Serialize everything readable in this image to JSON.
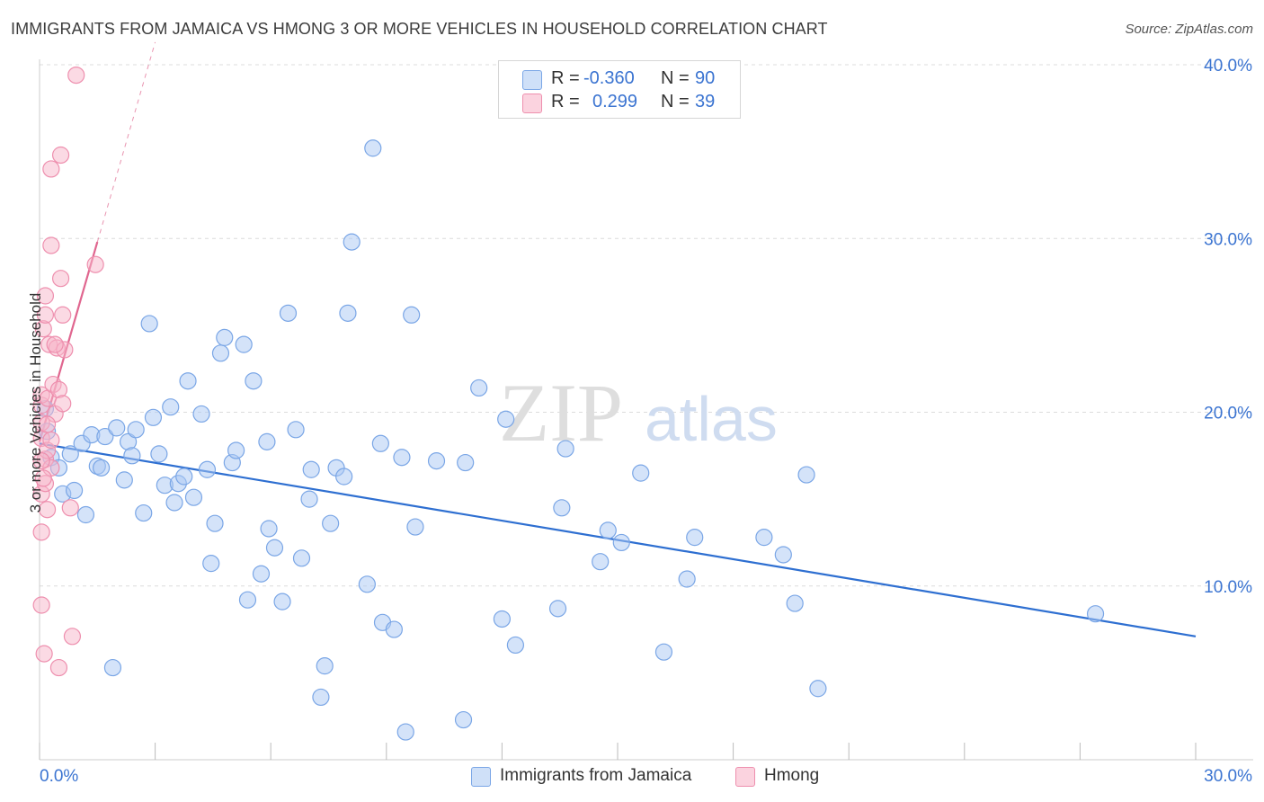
{
  "title": "IMMIGRANTS FROM JAMAICA VS HMONG 3 OR MORE VEHICLES IN HOUSEHOLD CORRELATION CHART",
  "source": "Source: ZipAtlas.com",
  "watermark": {
    "zip": "ZIP",
    "atlas": "atlas"
  },
  "legend": {
    "rows": [
      {
        "r_label": "R =",
        "r_value": "-0.360",
        "n_label": "N =",
        "n_value": "90",
        "color": "#a9c7f3"
      },
      {
        "r_label": "R =",
        "r_value": "0.299",
        "n_label": "N =",
        "n_value": "39",
        "color": "#f7b6ca"
      }
    ]
  },
  "chart_data": {
    "type": "scatter",
    "ylabel": "3 or more Vehicles in Household",
    "xlim": [
      0,
      30
    ],
    "ylim": [
      0,
      40
    ],
    "x_tick_labels": [
      "0.0%",
      "30.0%"
    ],
    "y_tick_labels": [
      "10.0%",
      "20.0%",
      "30.0%",
      "40.0%"
    ],
    "y_ticks": [
      10,
      20,
      30,
      40
    ],
    "series": [
      {
        "name": "Immigrants from Jamaica",
        "color": "#a9c7f3",
        "stroke": "#7aa6e6",
        "line_color": "#2e6fd1",
        "trend": {
          "x": [
            0,
            30
          ],
          "y": [
            18.2,
            7.1
          ]
        },
        "points": [
          [
            0.2,
            18.9
          ],
          [
            0.3,
            17.4
          ],
          [
            0.5,
            16.8
          ],
          [
            0.6,
            15.3
          ],
          [
            0.8,
            17.6
          ],
          [
            0.9,
            15.5
          ],
          [
            1.1,
            18.2
          ],
          [
            1.2,
            14.1
          ],
          [
            1.35,
            18.7
          ],
          [
            1.5,
            16.9
          ],
          [
            1.6,
            16.8
          ],
          [
            1.7,
            18.6
          ],
          [
            1.9,
            5.3
          ],
          [
            2.0,
            19.1
          ],
          [
            2.2,
            16.1
          ],
          [
            2.3,
            18.3
          ],
          [
            2.4,
            17.5
          ],
          [
            2.5,
            19.0
          ],
          [
            2.7,
            14.2
          ],
          [
            2.85,
            25.1
          ],
          [
            2.95,
            19.7
          ],
          [
            3.1,
            17.6
          ],
          [
            3.25,
            15.8
          ],
          [
            3.4,
            20.3
          ],
          [
            3.5,
            14.8
          ],
          [
            3.6,
            15.9
          ],
          [
            3.75,
            16.3
          ],
          [
            3.85,
            21.8
          ],
          [
            4.0,
            15.1
          ],
          [
            4.2,
            19.9
          ],
          [
            4.35,
            16.7
          ],
          [
            4.45,
            11.3
          ],
          [
            4.55,
            13.6
          ],
          [
            4.7,
            23.4
          ],
          [
            4.8,
            24.3
          ],
          [
            5.0,
            17.1
          ],
          [
            5.1,
            17.8
          ],
          [
            5.3,
            23.9
          ],
          [
            5.4,
            9.2
          ],
          [
            5.55,
            21.8
          ],
          [
            5.75,
            10.7
          ],
          [
            5.9,
            18.3
          ],
          [
            5.95,
            13.3
          ],
          [
            6.1,
            12.2
          ],
          [
            6.3,
            9.1
          ],
          [
            6.45,
            25.7
          ],
          [
            6.65,
            19.0
          ],
          [
            6.8,
            11.6
          ],
          [
            7.0,
            15.0
          ],
          [
            7.05,
            16.7
          ],
          [
            7.3,
            3.6
          ],
          [
            7.4,
            5.4
          ],
          [
            7.55,
            13.6
          ],
          [
            7.7,
            16.8
          ],
          [
            7.9,
            16.3
          ],
          [
            8.0,
            25.7
          ],
          [
            8.1,
            29.8
          ],
          [
            8.5,
            10.1
          ],
          [
            8.65,
            35.2
          ],
          [
            8.85,
            18.2
          ],
          [
            8.9,
            7.9
          ],
          [
            9.2,
            7.5
          ],
          [
            9.4,
            17.4
          ],
          [
            9.5,
            1.6
          ],
          [
            9.65,
            25.6
          ],
          [
            9.75,
            13.4
          ],
          [
            10.3,
            17.2
          ],
          [
            11.0,
            2.3
          ],
          [
            11.05,
            17.1
          ],
          [
            11.4,
            21.4
          ],
          [
            12.0,
            8.1
          ],
          [
            12.1,
            19.6
          ],
          [
            12.35,
            6.6
          ],
          [
            13.45,
            8.7
          ],
          [
            13.55,
            14.5
          ],
          [
            13.65,
            17.9
          ],
          [
            14.55,
            11.4
          ],
          [
            14.75,
            13.2
          ],
          [
            15.1,
            12.5
          ],
          [
            15.6,
            16.5
          ],
          [
            16.2,
            6.2
          ],
          [
            16.8,
            10.4
          ],
          [
            17.0,
            12.8
          ],
          [
            18.8,
            12.8
          ],
          [
            19.3,
            11.8
          ],
          [
            19.6,
            9.0
          ],
          [
            19.9,
            16.4
          ],
          [
            20.2,
            4.1
          ],
          [
            27.4,
            8.4
          ],
          [
            0.15,
            20.2
          ]
        ]
      },
      {
        "name": "Hmong",
        "color": "#f7b6ca",
        "stroke": "#ee8fae",
        "line_color": "#e0668f",
        "trend": {
          "x": [
            0,
            1.5
          ],
          "y": [
            18.3,
            29.8
          ]
        },
        "trend_ext": {
          "x": [
            1.5,
            3.0
          ],
          "y": [
            29.8,
            41.3
          ]
        },
        "points": [
          [
            0.05,
            8.9
          ],
          [
            0.05,
            13.1
          ],
          [
            0.05,
            15.3
          ],
          [
            0.05,
            18.5
          ],
          [
            0.05,
            19.4
          ],
          [
            0.05,
            20.4
          ],
          [
            0.05,
            21.0
          ],
          [
            0.1,
            24.8
          ],
          [
            0.12,
            6.1
          ],
          [
            0.15,
            17.3
          ],
          [
            0.15,
            15.9
          ],
          [
            0.15,
            25.6
          ],
          [
            0.15,
            26.7
          ],
          [
            0.2,
            14.4
          ],
          [
            0.2,
            17.8
          ],
          [
            0.22,
            20.8
          ],
          [
            0.25,
            23.9
          ],
          [
            0.3,
            34.0
          ],
          [
            0.3,
            29.6
          ],
          [
            0.3,
            16.8
          ],
          [
            0.35,
            21.6
          ],
          [
            0.4,
            19.9
          ],
          [
            0.45,
            23.7
          ],
          [
            0.5,
            21.3
          ],
          [
            0.5,
            5.3
          ],
          [
            0.55,
            34.8
          ],
          [
            0.55,
            27.7
          ],
          [
            0.6,
            25.6
          ],
          [
            0.6,
            20.5
          ],
          [
            0.65,
            23.6
          ],
          [
            0.8,
            14.5
          ],
          [
            0.85,
            7.1
          ],
          [
            0.95,
            39.4
          ],
          [
            1.45,
            28.5
          ],
          [
            0.2,
            19.3
          ],
          [
            0.1,
            16.2
          ],
          [
            0.4,
            23.9
          ],
          [
            0.05,
            17.2
          ],
          [
            0.3,
            18.4
          ]
        ]
      }
    ]
  },
  "bottom_legend": [
    "Immigrants from Jamaica",
    "Hmong"
  ]
}
